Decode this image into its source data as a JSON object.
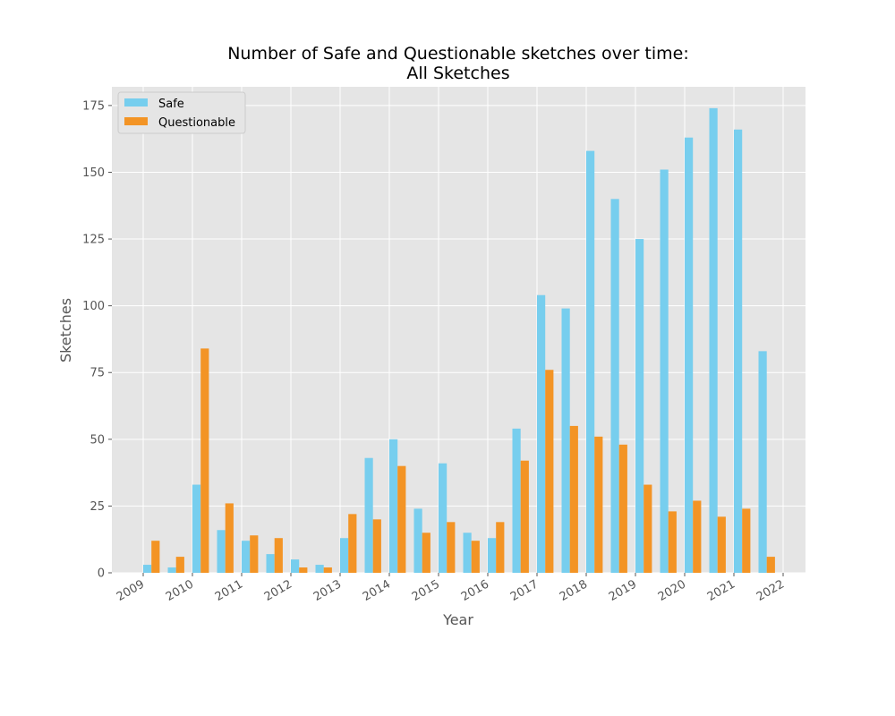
{
  "chart_data": {
    "type": "bar",
    "title_line1": "Number of Safe and Questionable sketches over time:",
    "title_line2": "All Sketches",
    "xlabel": "Year",
    "ylabel": "Sketches",
    "ylim": [
      0,
      182
    ],
    "yticks": [
      0,
      25,
      50,
      75,
      100,
      125,
      150,
      175
    ],
    "x_tick_labels": [
      "2009",
      "2010",
      "2011",
      "2012",
      "2013",
      "2014",
      "2015",
      "2016",
      "2017",
      "2018",
      "2019",
      "2020",
      "2021",
      "2022"
    ],
    "grid": true,
    "legend_position": "top-left",
    "bar_groups": 26,
    "series": [
      {
        "name": "Safe",
        "color": "#77CEEE",
        "values": [
          3,
          2,
          33,
          16,
          12,
          7,
          5,
          3,
          13,
          43,
          50,
          24,
          41,
          15,
          13,
          54,
          104,
          99,
          158,
          140,
          125,
          151,
          163,
          174,
          166,
          83
        ]
      },
      {
        "name": "Questionable",
        "color": "#F39425",
        "values": [
          12,
          6,
          84,
          26,
          14,
          13,
          2,
          2,
          22,
          20,
          40,
          15,
          19,
          12,
          19,
          42,
          76,
          55,
          51,
          48,
          33,
          23,
          27,
          21,
          24,
          6
        ]
      }
    ],
    "colors": {
      "background": "#E5E5E5",
      "grid": "#FFFFFF",
      "text": "#555555"
    }
  }
}
